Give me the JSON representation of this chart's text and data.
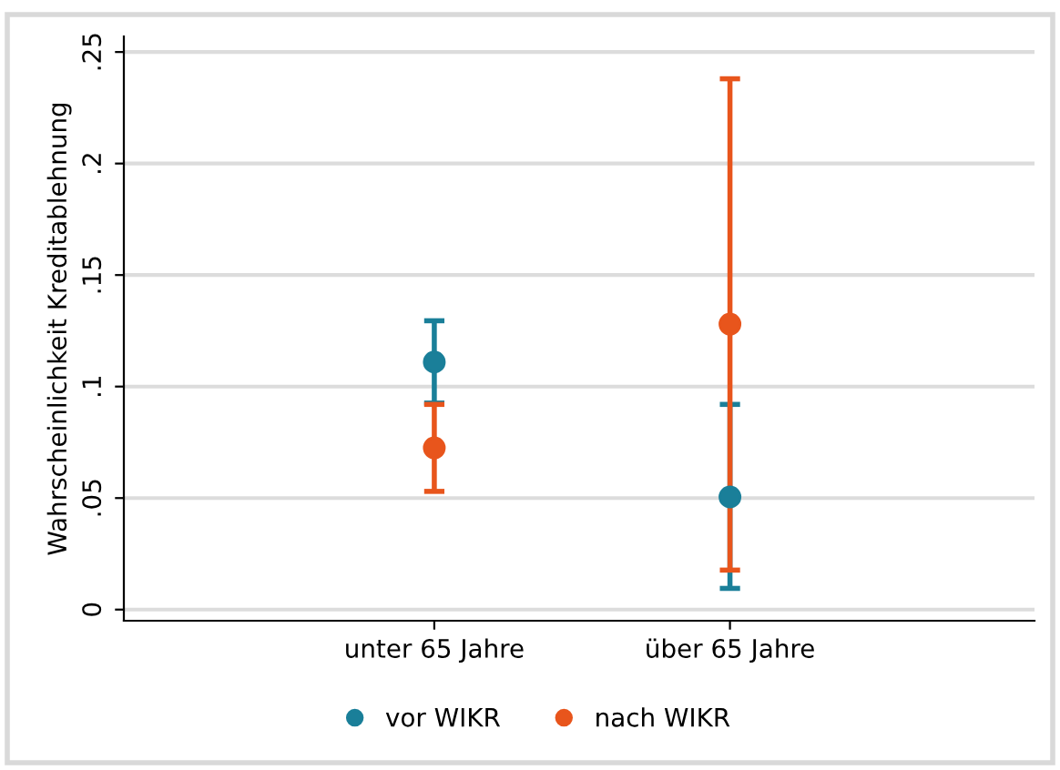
{
  "chart_data": {
    "type": "scatter",
    "ylabel": "Wahrscheinlichkeit Kreditablehnung",
    "categories": [
      "unter 65 Jahre",
      "über 65 Jahre"
    ],
    "series": [
      {
        "name": "vor WIKR",
        "color": "#1a7f99",
        "values": [
          0.111,
          0.0505
        ],
        "errors": [
          [
            0.0926,
            0.1295
          ],
          [
            0.0095,
            0.092
          ]
        ]
      },
      {
        "name": "nach WIKR",
        "color": "#e8551c",
        "values": [
          0.0725,
          0.128
        ],
        "errors": [
          [
            0.053,
            0.092
          ],
          [
            0.0177,
            0.238
          ]
        ]
      }
    ],
    "ylim": [
      -0.005,
      0.257
    ],
    "yticks": [
      {
        "value": 0,
        "label": "0"
      },
      {
        "value": 0.05,
        "label": ".05"
      },
      {
        "value": 0.1,
        "label": ".1"
      },
      {
        "value": 0.15,
        "label": ".15"
      },
      {
        "value": 0.2,
        "label": ".2"
      },
      {
        "value": 0.25,
        "label": ".25"
      }
    ],
    "grid": "y",
    "legend": "bottom",
    "marker": "circle"
  }
}
